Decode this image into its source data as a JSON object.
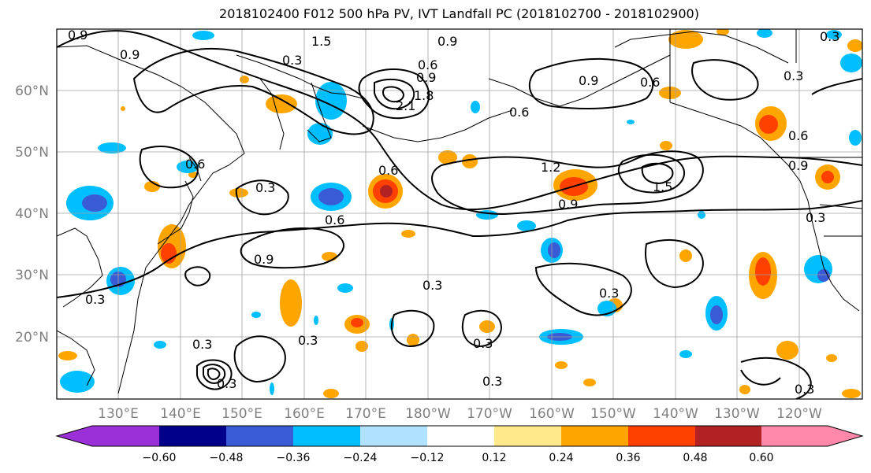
{
  "title": "2018102400 F012 500 hPa PV, IVT Landfall PC (2018102700 - 2018102900)",
  "lat_ticks": [
    "60°N",
    "50°N",
    "40°N",
    "30°N",
    "20°N"
  ],
  "lon_ticks": [
    "130°E",
    "140°E",
    "150°E",
    "160°E",
    "170°E",
    "180°W",
    "170°W",
    "160°W",
    "150°W",
    "140°W",
    "130°W",
    "120°W"
  ],
  "contour_labels": [
    "0.9",
    "0.9",
    "1.5",
    "0.3",
    "0.9",
    "0.6",
    "0.9",
    "2.1",
    "1.8",
    "0.6",
    "0.9",
    "0.6",
    "0.3",
    "0.3",
    "0.6",
    "1.2",
    "0.9",
    "1.5",
    "0.6",
    "0.3",
    "0.6",
    "0.9",
    "0.3",
    "0.6",
    "0.9",
    "0.3",
    "0.3",
    "0.3",
    "0.3",
    "0.3",
    "0.3",
    "0.3",
    "0.3",
    "0.3"
  ],
  "colorbar": {
    "tick_labels": [
      "−0.60",
      "−0.48",
      "−0.36",
      "−0.24",
      "−0.12",
      "0.12",
      "0.24",
      "0.36",
      "0.48",
      "0.60"
    ],
    "colors": [
      "#9b30d9",
      "#00008b",
      "#3a5bd6",
      "#00bfff",
      "#b0e2ff",
      "#ffffff",
      "#ffe98a",
      "#ffa500",
      "#ff4000",
      "#b22222",
      "#ff88aa"
    ]
  }
}
